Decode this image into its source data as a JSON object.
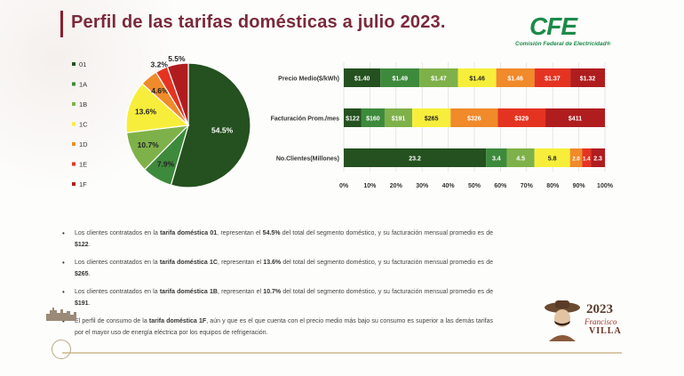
{
  "title": "Perfil de las tarifas domésticas a julio 2023.",
  "logo": {
    "text": "CFE",
    "subtitle": "Comisión Federal de Electricidad®"
  },
  "commemorative": {
    "year": "2023",
    "name_line1": "Francisco",
    "name_line2": "VILLA"
  },
  "chart_data": [
    {
      "type": "pie",
      "legend_position": "left",
      "categories": [
        "01",
        "1A",
        "1B",
        "1C",
        "1D",
        "1E",
        "1F"
      ],
      "values": [
        54.5,
        7.9,
        10.7,
        13.6,
        4.6,
        3.2,
        5.5
      ],
      "value_labels": [
        "54.5%",
        "7.9%",
        "10.7%",
        "13.6%",
        "4.6%",
        "3.2%",
        "5.5%"
      ],
      "colors": [
        "#24511f",
        "#3e8a3c",
        "#7fb14a",
        "#f7ee3b",
        "#f08a2a",
        "#e43421",
        "#b01d1f"
      ]
    },
    {
      "type": "bar",
      "orientation": "horizontal",
      "stacked": "percent",
      "categories": [
        "Precio Medio($/kWh)",
        "Facturación Prom./mes",
        "No.Clientes(Millones)"
      ],
      "xticks": [
        "0%",
        "10%",
        "20%",
        "30%",
        "40%",
        "50%",
        "60%",
        "70%",
        "80%",
        "90%",
        "100%"
      ],
      "xlim": [
        0,
        100
      ],
      "series": [
        {
          "name": "01",
          "color": "#24511f",
          "values": [
            1.4,
            122,
            23.2
          ],
          "labels": [
            "$1.40",
            "$122",
            "23.2"
          ]
        },
        {
          "name": "1A",
          "color": "#3e8a3c",
          "values": [
            1.49,
            160,
            3.4
          ],
          "labels": [
            "$1.49",
            "$160",
            "3.4"
          ]
        },
        {
          "name": "1B",
          "color": "#7fb14a",
          "values": [
            1.47,
            191,
            4.5
          ],
          "labels": [
            "$1.47",
            "$191",
            "4.5"
          ]
        },
        {
          "name": "1C",
          "color": "#f7ee3b",
          "values": [
            1.46,
            265,
            5.8
          ],
          "labels": [
            "$1.46",
            "$265",
            "5.8"
          ]
        },
        {
          "name": "1D",
          "color": "#f08a2a",
          "values": [
            1.46,
            326,
            2.0
          ],
          "labels": [
            "$1.46",
            "$326",
            "2.0"
          ]
        },
        {
          "name": "1E",
          "color": "#e43421",
          "values": [
            1.37,
            329,
            1.4
          ],
          "labels": [
            "$1.37",
            "$329",
            "1.4"
          ]
        },
        {
          "name": "1F",
          "color": "#b01d1f",
          "values": [
            1.32,
            411,
            2.3
          ],
          "labels": [
            "$1.32",
            "$411",
            "2.3"
          ]
        }
      ]
    }
  ],
  "bullets": [
    {
      "pre": "Los clientes contratados en la ",
      "tariff": "tarifa doméstica 01",
      "mid": ", representan el ",
      "pct": "54.5%",
      "mid2": " del total del segmento doméstico, y su facturación mensual promedio es de ",
      "amount": "$122",
      "post": "."
    },
    {
      "pre": "Los clientes contratados en la ",
      "tariff": "tarifa doméstica 1C",
      "mid": ", representan el ",
      "pct": "13.6%",
      "mid2": " del total del segmento doméstico, y su facturación mensual promedio es de ",
      "amount": "$265",
      "post": "."
    },
    {
      "pre": "Los clientes contratados en la ",
      "tariff": "tarifa doméstica 1B",
      "mid": ", representan el ",
      "pct": "10.7%",
      "mid2": " del total del segmento doméstico, y su facturación mensual promedio es de ",
      "amount": "$191",
      "post": "."
    },
    {
      "pre": "El perfil de consumo de la ",
      "tariff": "tarifa doméstica 1F",
      "mid": ", aún y que es el que cuenta con el precio medio más bajo su consumo es superior a las demás tarifas por el mayor uso de energía eléctrica por los equipos de refrigeración.",
      "pct": "",
      "mid2": "",
      "amount": "",
      "post": ""
    }
  ]
}
